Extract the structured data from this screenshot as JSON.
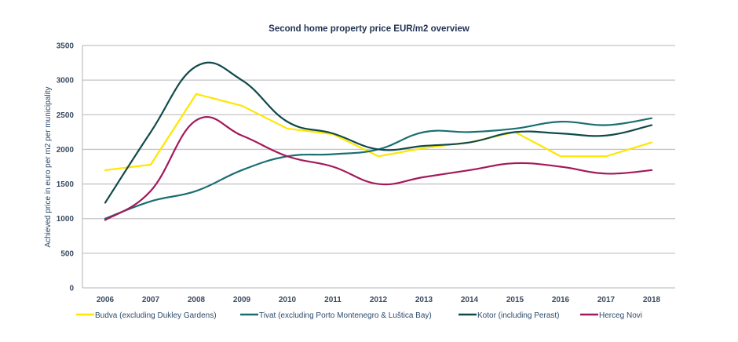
{
  "chart_data": {
    "type": "line",
    "title": "Second home property price EUR/m2 overview",
    "xlabel": "",
    "ylabel": "Achieved price in euro per m2 per municipality",
    "ylim": [
      0,
      3500
    ],
    "yticks": [
      0,
      500,
      1000,
      1500,
      2000,
      2500,
      3000,
      3500
    ],
    "grid": true,
    "legend_position": "bottom",
    "categories": [
      "2006",
      "2007",
      "2008",
      "2009",
      "2010",
      "2011",
      "2012",
      "2013",
      "2014",
      "2015",
      "2016",
      "2017",
      "2018"
    ],
    "series": [
      {
        "name": "Budva (excluding Dukley Gardens)",
        "color": "#ffe600",
        "smooth": false,
        "values": [
          1700,
          1780,
          2800,
          2630,
          2300,
          2220,
          1900,
          2020,
          2100,
          2250,
          1900,
          1900,
          2100
        ]
      },
      {
        "name": "Tivat (excluding Porto Montenegro & Luštica Bay)",
        "color": "#1a6e72",
        "smooth": true,
        "values": [
          1000,
          1250,
          1400,
          1700,
          1900,
          1930,
          2000,
          2250,
          2250,
          2300,
          2400,
          2350,
          2450
        ]
      },
      {
        "name": "Kotor (including Perast)",
        "color": "#114a4a",
        "smooth": true,
        "values": [
          1230,
          2250,
          3200,
          3000,
          2400,
          2230,
          2000,
          2050,
          2100,
          2250,
          2230,
          2200,
          2350
        ]
      },
      {
        "name": "Herceg Novi",
        "color": "#a3195b",
        "smooth": true,
        "values": [
          980,
          1400,
          2420,
          2200,
          1900,
          1750,
          1500,
          1600,
          1700,
          1800,
          1750,
          1650,
          1700
        ]
      }
    ]
  }
}
